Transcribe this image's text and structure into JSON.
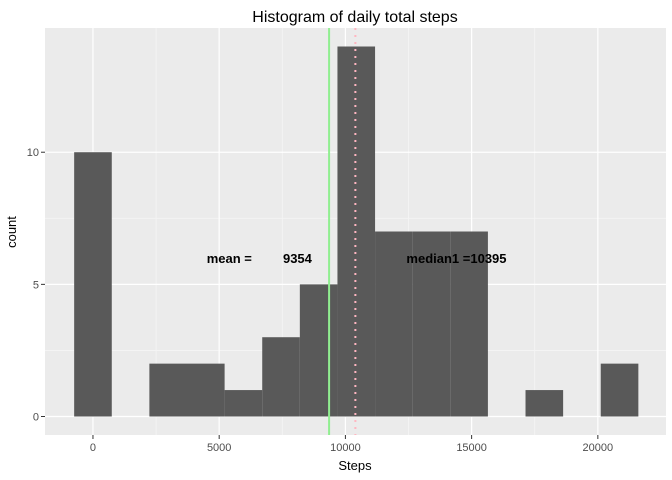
{
  "chart_data": {
    "type": "bar",
    "title": "Histogram of daily total steps",
    "xlabel": "Steps",
    "ylabel": "count",
    "xlim": [
      -1900,
      22700
    ],
    "ylim": [
      -0.7,
      14.7
    ],
    "x_ticks": [
      0,
      5000,
      10000,
      15000,
      20000
    ],
    "y_ticks": [
      0,
      5,
      10
    ],
    "bins": [
      {
        "x0": -745,
        "x1": 745,
        "count": 10
      },
      {
        "x0": 745,
        "x1": 2235,
        "count": 0
      },
      {
        "x0": 2235,
        "x1": 3725,
        "count": 2
      },
      {
        "x0": 3725,
        "x1": 5215,
        "count": 2
      },
      {
        "x0": 5215,
        "x1": 6705,
        "count": 1
      },
      {
        "x0": 6705,
        "x1": 8195,
        "count": 3
      },
      {
        "x0": 8195,
        "x1": 9685,
        "count": 5
      },
      {
        "x0": 9685,
        "x1": 11175,
        "count": 14
      },
      {
        "x0": 11175,
        "x1": 12665,
        "count": 7
      },
      {
        "x0": 12665,
        "x1": 14155,
        "count": 7
      },
      {
        "x0": 14155,
        "x1": 15645,
        "count": 7
      },
      {
        "x0": 15645,
        "x1": 17135,
        "count": 0
      },
      {
        "x0": 17135,
        "x1": 18625,
        "count": 1
      },
      {
        "x0": 18625,
        "x1": 20115,
        "count": 0
      },
      {
        "x0": 20115,
        "x1": 21605,
        "count": 2
      }
    ],
    "vlines": [
      {
        "name": "mean",
        "x": 9354,
        "color": "#90ee90",
        "style": "solid"
      },
      {
        "name": "median",
        "x": 10395,
        "color": "#ffb6c1",
        "style": "dotted"
      }
    ],
    "annotations": [
      {
        "text": "mean =",
        "x": 5400,
        "y": 6
      },
      {
        "text": "9354",
        "x": 8100,
        "y": 6
      },
      {
        "text": "median1 =10395",
        "x": 14400,
        "y": 6
      }
    ],
    "grid": true,
    "colors": {
      "panel": "#ebebeb",
      "grid_major": "#ffffff",
      "grid_minor": "#f5f5f5",
      "bar_fill": "#595959"
    }
  }
}
